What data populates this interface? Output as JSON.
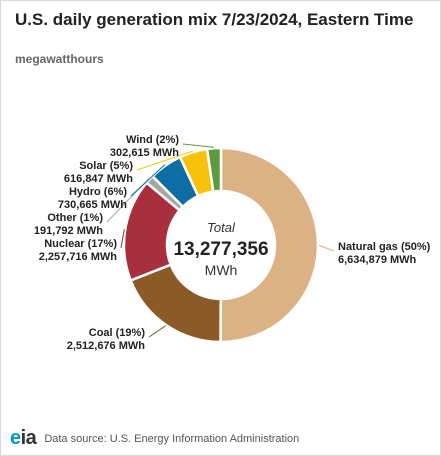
{
  "header": {
    "title": "U.S. daily generation mix 7/23/2024, Eastern Time",
    "subtitle": "megawatthours"
  },
  "center": {
    "label": "Total",
    "value": "13,277,356",
    "unit": "MWh"
  },
  "footer": {
    "logo": "eia",
    "source": "Data source: U.S. Energy Information Administration"
  },
  "chart_data": {
    "type": "pie",
    "variant": "donut",
    "start": "top",
    "direction": "clockwise",
    "total": 13277356,
    "slices": [
      {
        "name": "Natural gas",
        "pct": "50%",
        "value": 6634879,
        "value_label": "6,634,879 MWh",
        "color": "#dcb285"
      },
      {
        "name": "Coal",
        "pct": "19%",
        "value": 2512676,
        "value_label": "2,512,676 MWh",
        "color": "#8b5a26"
      },
      {
        "name": "Nuclear",
        "pct": "17%",
        "value": 2257716,
        "value_label": "2,257,716 MWh",
        "color": "#a8303e"
      },
      {
        "name": "Other",
        "pct": "1%",
        "value": 191792,
        "value_label": "191,792 MWh",
        "color": "#a6a6a6"
      },
      {
        "name": "Hydro",
        "pct": "6%",
        "value": 730665,
        "value_label": "730,665 MWh",
        "color": "#0c6ea3"
      },
      {
        "name": "Solar",
        "pct": "5%",
        "value": 616847,
        "value_label": "616,847 MWh",
        "color": "#f9c20a"
      },
      {
        "name": "Wind",
        "pct": "2%",
        "value": 302615,
        "value_label": "302,615 MWh",
        "color": "#5a9c3c"
      }
    ]
  }
}
